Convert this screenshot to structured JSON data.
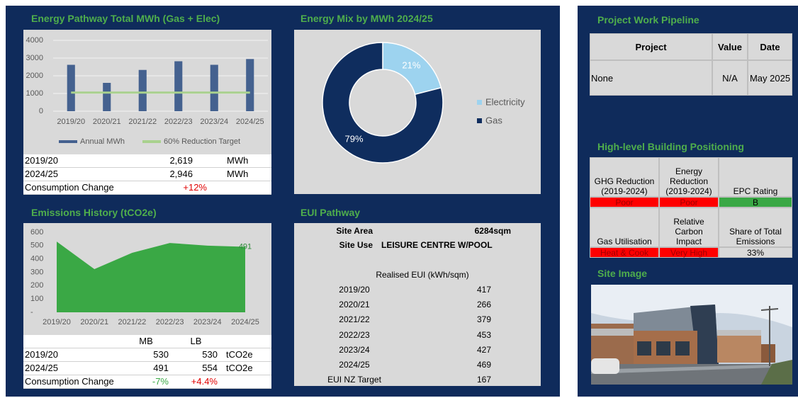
{
  "chart_data": [
    {
      "type": "bar",
      "title": "Energy Pathway Total MWh (Gas + Elec)",
      "categories": [
        "2019/20",
        "2020/21",
        "2021/22",
        "2022/23",
        "2023/24",
        "2024/25"
      ],
      "series": [
        {
          "name": "Annual MWh",
          "color": "#44618f",
          "values": [
            2619,
            1600,
            2330,
            2820,
            2620,
            2946
          ]
        },
        {
          "name": "60% Reduction Target",
          "type": "line",
          "color": "#a9d18e",
          "values": [
            1048,
            1048,
            1048,
            1048,
            1048,
            1048
          ]
        }
      ],
      "ylim": [
        0,
        4000
      ],
      "yticks": [
        0,
        1000,
        2000,
        3000,
        4000
      ],
      "grid": true,
      "legend": "bottom"
    },
    {
      "type": "pie",
      "title": "Energy Mix by MWh 2024/25",
      "categories": [
        "Electricity",
        "Gas"
      ],
      "values": [
        21,
        79
      ],
      "value_labels": [
        "21%",
        "79%"
      ],
      "colors": [
        "#9dd3ef",
        "#0f2d5e"
      ],
      "donut": true,
      "legend": "right"
    },
    {
      "type": "area",
      "title": "Emissions History (tCO2e)",
      "categories": [
        "2019/20",
        "2020/21",
        "2021/22",
        "2022/23",
        "2023/24",
        "2024/25"
      ],
      "series": [
        {
          "color": "#3aa845",
          "values": [
            530,
            324,
            446,
            520,
            500,
            491
          ],
          "value_labels": [
            null,
            null,
            null,
            null,
            null,
            "491"
          ]
        }
      ],
      "ylim": [
        0,
        600
      ],
      "yticks": [
        {
          "value": 0,
          "label": "-"
        },
        100,
        200,
        300,
        400,
        500,
        600
      ],
      "grid": false
    }
  ],
  "energy_summary": {
    "rows": [
      [
        "2019/20",
        "2,619",
        "MWh"
      ],
      [
        "2024/25",
        "2,946",
        "MWh"
      ],
      [
        "Consumption Change",
        "+12%"
      ]
    ]
  },
  "emissions_summary": {
    "header": [
      "MB",
      "LB"
    ],
    "rows": [
      [
        "2019/20",
        "530",
        "530",
        "tCO2e"
      ],
      [
        "2024/25",
        "491",
        "554",
        "tCO2e"
      ],
      [
        "Consumption Change",
        "-7%",
        "+4.4%"
      ]
    ]
  },
  "eui": {
    "title": "EUI Pathway",
    "site_area_label": "Site Area",
    "site_area": "6284sqm",
    "site_use_label": "Site Use",
    "site_use": "LEISURE CENTRE W/POOL",
    "subtitle": "Realised EUI (kWh/sqm)",
    "rows": [
      [
        "2019/20",
        "417"
      ],
      [
        "2020/21",
        "266"
      ],
      [
        "2021/22",
        "379"
      ],
      [
        "2022/23",
        "453"
      ],
      [
        "2023/24",
        "427"
      ],
      [
        "2024/25",
        "469"
      ],
      [
        "EUI NZ Target",
        "167"
      ]
    ]
  },
  "pipeline": {
    "title": "Project Work Pipeline",
    "header": [
      "Project",
      "Value",
      "Date"
    ],
    "rows": [
      [
        "None",
        "N/A",
        "May 2025"
      ]
    ]
  },
  "positioning": {
    "title": "High-level Building Positioning",
    "cells": [
      {
        "label": "GHG Reduction (2019-2024)",
        "status": "Poor",
        "color": "#ff0000"
      },
      {
        "label": "Energy Reduction (2019-2024)",
        "status": "Poor",
        "color": "#ff0000"
      },
      {
        "label": "EPC Rating",
        "status": "B",
        "color": "#3aa845"
      },
      {
        "label": "Gas Utilisation",
        "status": "Heat & Cook",
        "color": "#ff0000"
      },
      {
        "label": "Relative Carbon Impact",
        "status": "Very High",
        "color": "#ff0000"
      },
      {
        "label": "Share of Total Emissions",
        "status": "33%",
        "color": "#d9d9d9"
      }
    ]
  },
  "site_image": {
    "title": "Site Image"
  }
}
